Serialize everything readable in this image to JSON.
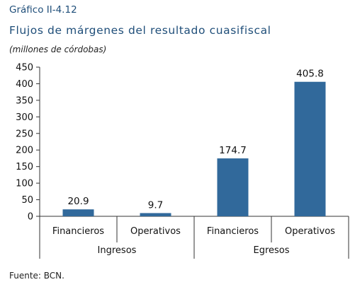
{
  "header": {
    "figure_label": "Gráfico II-4.12",
    "title": "Flujos de márgenes del resultado cuasifiscal",
    "subtitle": "(millones de córdobas)"
  },
  "footer": {
    "source": "Fuente: BCN."
  },
  "colors": {
    "bar": "#31699b",
    "title": "#1f4e79"
  },
  "chart_data": {
    "type": "bar",
    "title": "Flujos de márgenes del resultado cuasifiscal",
    "ylabel": "(millones de córdobas)",
    "xlabel": "",
    "categories": [
      "Financieros",
      "Operativos",
      "Financieros",
      "Operativos"
    ],
    "groups": [
      {
        "label": "Ingresos",
        "categories": [
          0,
          1
        ]
      },
      {
        "label": "Egresos",
        "categories": [
          2,
          3
        ]
      }
    ],
    "values": [
      20.9,
      9.7,
      174.7,
      405.8
    ],
    "data_labels": [
      "20.9",
      "9.7",
      "174.7",
      "405.8"
    ],
    "ylim": [
      0,
      450
    ],
    "yticks": [
      0,
      50,
      100,
      150,
      200,
      250,
      300,
      350,
      400,
      450
    ],
    "grid": false,
    "legend": "none"
  }
}
